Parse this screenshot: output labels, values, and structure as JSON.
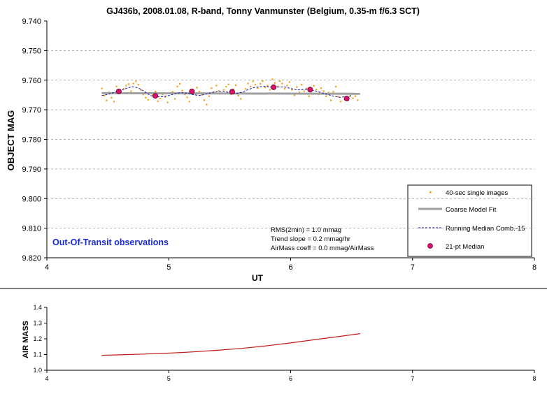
{
  "chart_data": [
    {
      "type": "scatter",
      "title": "GJ436b, 2008.01.08, R-band, Tonny Vanmunster (Belgium, 0.35-m f/6.3 SCT)",
      "xlabel": "UT",
      "ylabel": "OBJECT MAG",
      "xlim": [
        4,
        8
      ],
      "ylim": [
        9.74,
        9.82
      ],
      "y_inverted": true,
      "grid": "horizontal-dashed",
      "legend_position": "bottom-right",
      "x_ticks": [
        "4",
        "5",
        "6",
        "7",
        "8"
      ],
      "y_ticks": [
        "9.740",
        "9.750",
        "9.760",
        "9.770",
        "9.780",
        "9.790",
        "9.800",
        "9.810",
        "9.820"
      ],
      "legend": [
        "40-sec single images",
        "Coarse Model Fit",
        "Running Median Comb.-15",
        "21-pt Median"
      ],
      "annotation_title": "Out-Of-Transit observations",
      "stats": [
        "RMS(2min) = 1.0 mmag",
        "Trend slope = 0.2 mmag/hr",
        "AirMass coeff = 0.0 mmag/AirMass"
      ],
      "colors": {
        "single": "#f0a020",
        "fit": "#a0a0a0",
        "running": "#1a1aa0",
        "median": "#e0106a",
        "annotation": "#1a2ad0"
      },
      "series": [
        {
          "name": "40-sec single images",
          "x": [
            4.45,
            4.47,
            4.49,
            4.51,
            4.53,
            4.55,
            4.57,
            4.59,
            4.61,
            4.63,
            4.65,
            4.67,
            4.69,
            4.71,
            4.73,
            4.75,
            4.77,
            4.79,
            4.81,
            4.83,
            4.85,
            4.87,
            4.89,
            4.91,
            4.93,
            4.95,
            4.97,
            4.99,
            5.01,
            5.03,
            5.05,
            5.07,
            5.09,
            5.11,
            5.13,
            5.15,
            5.17,
            5.19,
            5.21,
            5.23,
            5.25,
            5.27,
            5.29,
            5.31,
            5.33,
            5.35,
            5.37,
            5.39,
            5.41,
            5.43,
            5.45,
            5.47,
            5.49,
            5.51,
            5.53,
            5.55,
            5.57,
            5.59,
            5.61,
            5.63,
            5.65,
            5.67,
            5.69,
            5.71,
            5.73,
            5.75,
            5.77,
            5.79,
            5.81,
            5.83,
            5.85,
            5.87,
            5.89,
            5.91,
            5.93,
            5.95,
            5.97,
            5.99,
            6.01,
            6.03,
            6.05,
            6.07,
            6.09,
            6.11,
            6.13,
            6.15,
            6.17,
            6.19,
            6.21,
            6.23,
            6.25,
            6.27,
            6.29,
            6.31,
            6.33,
            6.35,
            6.37,
            6.39,
            6.41,
            6.43,
            6.45,
            6.47,
            6.49,
            6.51,
            6.53,
            6.55
          ],
          "y": [
            9.7628,
            9.7652,
            9.7668,
            9.7641,
            9.7659,
            9.7672,
            9.7621,
            9.7635,
            9.7644,
            9.7629,
            9.7618,
            9.7613,
            9.7637,
            9.7611,
            9.7604,
            9.7615,
            9.7632,
            9.7648,
            9.7659,
            9.7666,
            9.7643,
            9.7651,
            9.7638,
            9.7671,
            9.7662,
            9.7648,
            9.7656,
            9.7675,
            9.7644,
            9.7639,
            9.7663,
            9.7621,
            9.7612,
            9.7635,
            9.7648,
            9.7658,
            9.7672,
            9.7631,
            9.7646,
            9.7625,
            9.7638,
            9.7649,
            9.7667,
            9.7682,
            9.7654,
            9.7627,
            9.7641,
            9.7618,
            9.7636,
            9.7645,
            9.7633,
            9.7622,
            9.7614,
            9.7648,
            9.7631,
            9.7617,
            9.7652,
            9.7663,
            9.7643,
            9.7629,
            9.7611,
            9.7621,
            9.7604,
            9.7615,
            9.7626,
            9.7612,
            9.7603,
            9.7624,
            9.7618,
            9.7632,
            9.7597,
            9.7609,
            9.7621,
            9.7603,
            9.7611,
            9.7629,
            9.7618,
            9.7606,
            9.7632,
            9.7651,
            9.7623,
            9.7641,
            9.7615,
            9.7637,
            9.7628,
            9.7654,
            9.7644,
            9.7619,
            9.7631,
            9.7648,
            9.7627,
            9.7637,
            9.7654,
            9.7642,
            9.7668,
            9.7639,
            9.7621,
            9.7655,
            9.7672,
            9.7646,
            9.7659,
            9.7668,
            9.7652,
            9.7661,
            9.7654,
            9.7667
          ]
        },
        {
          "name": "Coarse Model Fit",
          "x": [
            4.45,
            6.57
          ],
          "y": [
            9.7644,
            9.7646
          ]
        },
        {
          "name": "Running Median Comb.-15",
          "x": [
            4.45,
            4.5,
            4.55,
            4.6,
            4.65,
            4.7,
            4.75,
            4.8,
            4.85,
            4.9,
            4.95,
            5.0,
            5.05,
            5.1,
            5.15,
            5.2,
            5.25,
            5.3,
            5.35,
            5.4,
            5.45,
            5.5,
            5.55,
            5.6,
            5.65,
            5.7,
            5.75,
            5.8,
            5.85,
            5.9,
            5.95,
            6.0,
            6.05,
            6.1,
            6.15,
            6.2,
            6.25,
            6.3,
            6.35,
            6.4,
            6.45,
            6.5
          ],
          "y": [
            9.7652,
            9.7648,
            9.7642,
            9.7636,
            9.7628,
            9.7622,
            9.7626,
            9.7638,
            9.7652,
            9.7656,
            9.7656,
            9.7652,
            9.7646,
            9.7642,
            9.7644,
            9.7649,
            9.7652,
            9.7648,
            9.7642,
            9.7638,
            9.7638,
            9.7642,
            9.7645,
            9.7641,
            9.7632,
            9.7625,
            9.7622,
            9.7621,
            9.7624,
            9.7623,
            9.7623,
            9.7628,
            9.7633,
            9.7632,
            9.7631,
            9.7636,
            9.7642,
            9.7648,
            9.7654,
            9.7658,
            9.7656,
            9.7653
          ]
        },
        {
          "name": "21-pt Median",
          "x": [
            4.59,
            4.89,
            5.19,
            5.52,
            5.86,
            6.16,
            6.46
          ],
          "y": [
            9.7638,
            9.7653,
            9.7638,
            9.7639,
            9.7624,
            9.7632,
            9.7662
          ]
        }
      ]
    },
    {
      "type": "line",
      "title": "",
      "xlabel": "",
      "ylabel": "AIR MASS",
      "xlim": [
        4,
        8
      ],
      "ylim": [
        1.0,
        1.4
      ],
      "grid": "none",
      "x_ticks": [
        "4",
        "5",
        "6",
        "7",
        "8"
      ],
      "y_ticks": [
        "1.0",
        "1.1",
        "1.2",
        "1.3",
        "1.4"
      ],
      "colors": {
        "line": "#c01818"
      },
      "series": [
        {
          "name": "",
          "x": [
            4.45,
            4.6,
            4.8,
            5.0,
            5.2,
            5.4,
            5.6,
            5.8,
            6.0,
            6.2,
            6.4,
            6.57
          ],
          "y": [
            1.095,
            1.098,
            1.103,
            1.109,
            1.117,
            1.127,
            1.139,
            1.155,
            1.174,
            1.195,
            1.215,
            1.233
          ]
        }
      ]
    }
  ]
}
